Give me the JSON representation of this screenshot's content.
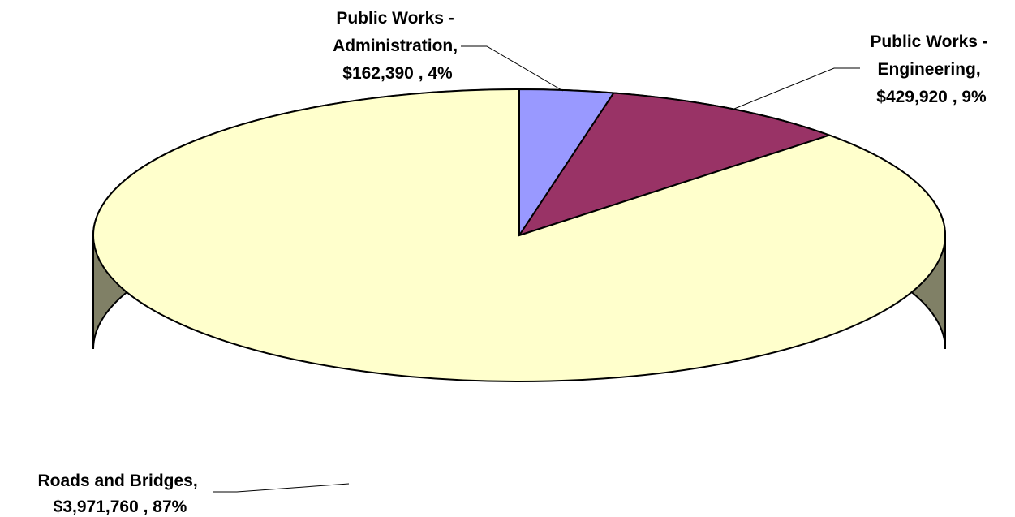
{
  "chart_data": {
    "type": "pie",
    "style": "3d",
    "title": "",
    "start_angle_deg": 90,
    "direction": "clockwise",
    "slices": [
      {
        "name": "Public Works - Administration",
        "value": 162390,
        "percent": 4,
        "color": "#9999ff",
        "side_color": "#6b6bb3",
        "label_lines": [
          "Public Works -",
          "Administration,",
          "$162,390 , 4%"
        ]
      },
      {
        "name": "Public Works - Engineering",
        "value": 429920,
        "percent": 9,
        "color": "#993366",
        "side_color": "#6b2447",
        "label_lines": [
          "Public Works -",
          "Engineering,",
          "$429,920 , 9%"
        ]
      },
      {
        "name": "Roads and Bridges",
        "value": 3971760,
        "percent": 87,
        "color": "#ffffcc",
        "side_color": "#808066",
        "label_lines": [
          "Roads and Bridges,",
          "$3,971,760 , 87%"
        ]
      }
    ]
  }
}
